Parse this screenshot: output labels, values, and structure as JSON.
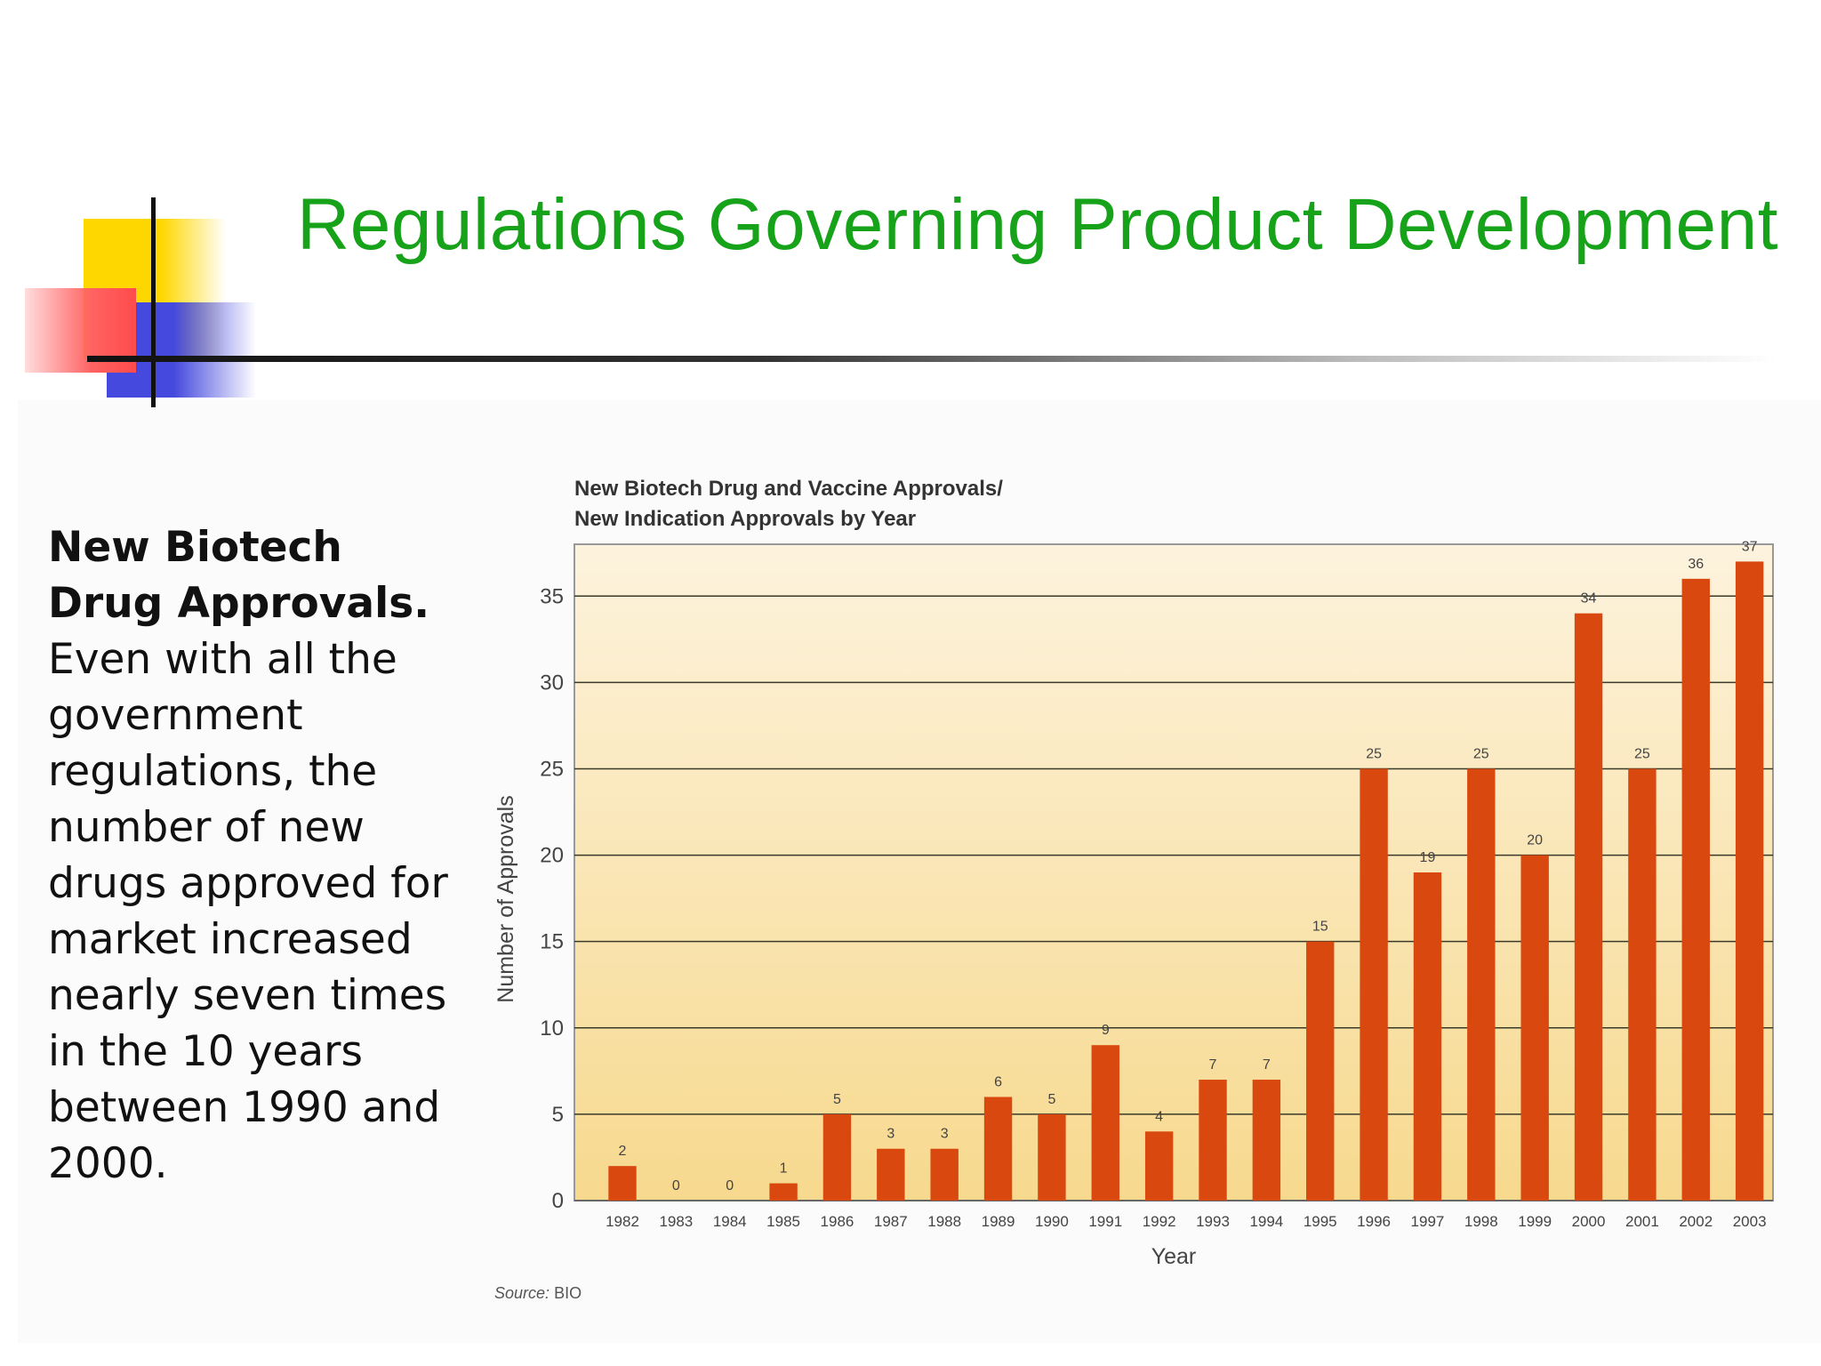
{
  "slide": {
    "title": "Regulations Governing Product Development"
  },
  "side_text": {
    "heading": "New Biotech Drug Approvals.",
    "body": "Even with all the government regulations, the number of new drugs approved for market increased nearly seven times in the 10 years between 1990 and 2000."
  },
  "chart_data": {
    "type": "bar",
    "title_lines": [
      "New Biotech Drug and Vaccine Approvals/",
      "New Indication Approvals by Year"
    ],
    "xlabel": "Year",
    "ylabel": "Number of Approvals",
    "ylim": [
      0,
      38
    ],
    "yticks": [
      0,
      5,
      10,
      15,
      20,
      25,
      30,
      35
    ],
    "grid": true,
    "categories": [
      "1982",
      "1983",
      "1984",
      "1985",
      "1986",
      "1987",
      "1988",
      "1989",
      "1990",
      "1991",
      "1992",
      "1993",
      "1994",
      "1995",
      "1996",
      "1997",
      "1998",
      "1999",
      "2000",
      "2001",
      "2002",
      "2003"
    ],
    "values": [
      2,
      0,
      0,
      1,
      5,
      3,
      3,
      6,
      5,
      9,
      4,
      7,
      7,
      15,
      25,
      19,
      25,
      20,
      34,
      25,
      36,
      37
    ],
    "source_label": "Source:",
    "source": "BIO",
    "colors": {
      "bar": "#d9480f",
      "plot_bg_top": "#fdf3dd",
      "plot_bg_bottom": "#f7d98e",
      "grid": "#3a3a2a",
      "title_text": "#16a31a"
    }
  }
}
